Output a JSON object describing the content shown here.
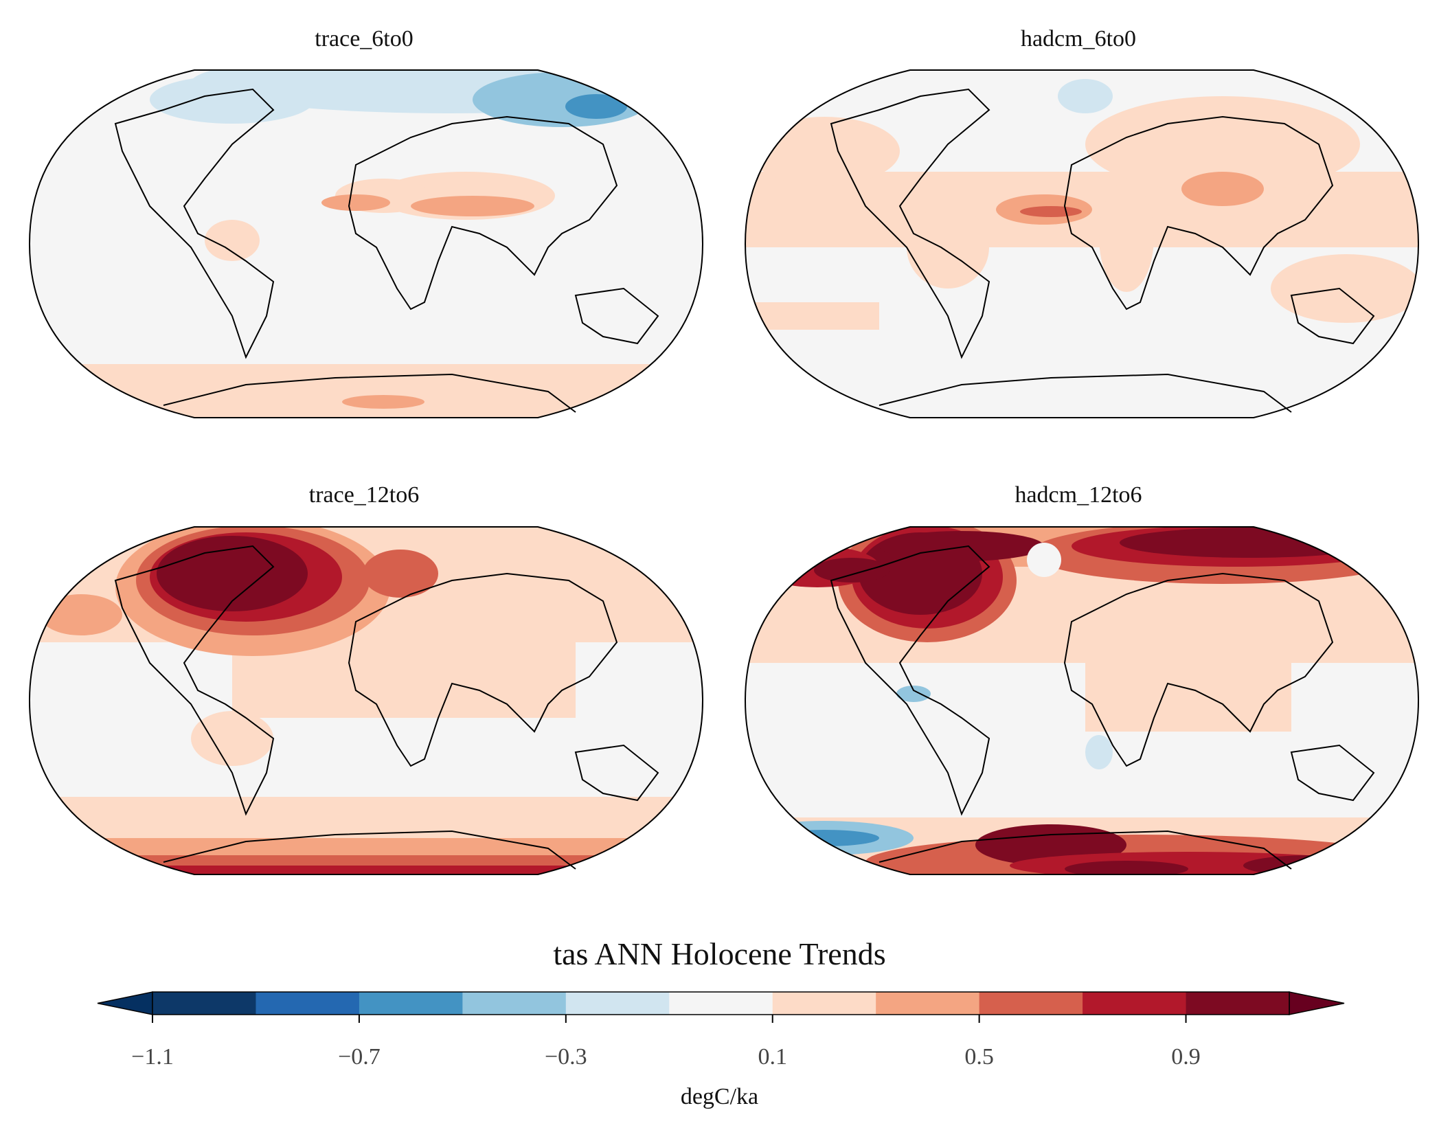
{
  "figure": {
    "title": "tas ANN Holocene Trends",
    "colorbar": {
      "unit_label": "degC/ka",
      "tick_labels": [
        "−1.1",
        "−0.7",
        "−0.3",
        "0.1",
        "0.5",
        "0.9"
      ],
      "tick_values": [
        -1.1,
        -0.7,
        -0.3,
        0.1,
        0.5,
        0.9
      ],
      "levels": [
        -1.1,
        -0.9,
        -0.7,
        -0.5,
        -0.3,
        -0.1,
        0.1,
        0.3,
        0.5,
        0.7,
        0.9,
        1.1
      ],
      "extend": "both",
      "colors": [
        "#0d3868",
        "#2468b1",
        "#4393c3",
        "#92c5de",
        "#d1e5f0",
        "#f5f5f5",
        "#fddbc7",
        "#f4a582",
        "#d6604d",
        "#b2182b",
        "#7d0a22"
      ],
      "extend_low_color": "#053061",
      "extend_high_color": "#67001f"
    },
    "panels": [
      {
        "id": "trace_6to0",
        "title": "trace_6to0"
      },
      {
        "id": "hadcm_6to0",
        "title": "hadcm_6to0"
      },
      {
        "id": "trace_12to6",
        "title": "trace_12to6"
      },
      {
        "id": "hadcm_12to6",
        "title": "hadcm_12to6"
      }
    ],
    "projection": "Robinson"
  }
}
